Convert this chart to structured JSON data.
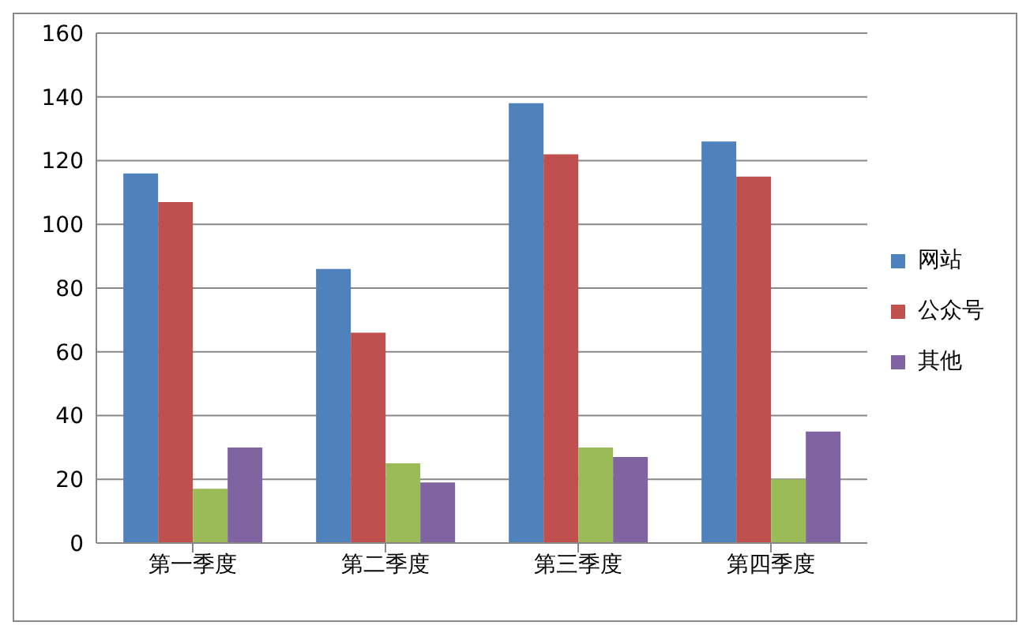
{
  "chart_data": {
    "type": "bar",
    "categories": [
      "第一季度",
      "第二季度",
      "第三季度",
      "第四季度"
    ],
    "series": [
      {
        "name": "网站",
        "color": "#4f81bd",
        "values": [
          116,
          86,
          138,
          126
        ]
      },
      {
        "name": "公众号",
        "color": "#c0504d",
        "values": [
          107,
          66,
          122,
          115
        ]
      },
      {
        "color": "#9bbb59",
        "values": [
          17,
          25,
          30,
          20
        ]
      },
      {
        "name": "其他",
        "color": "#8064a2",
        "values": [
          30,
          19,
          27,
          35
        ]
      }
    ],
    "ylim": [
      0,
      160
    ],
    "yticks": [
      0,
      20,
      40,
      60,
      80,
      100,
      120,
      140,
      160
    ],
    "grid": "y",
    "legend": "right"
  }
}
